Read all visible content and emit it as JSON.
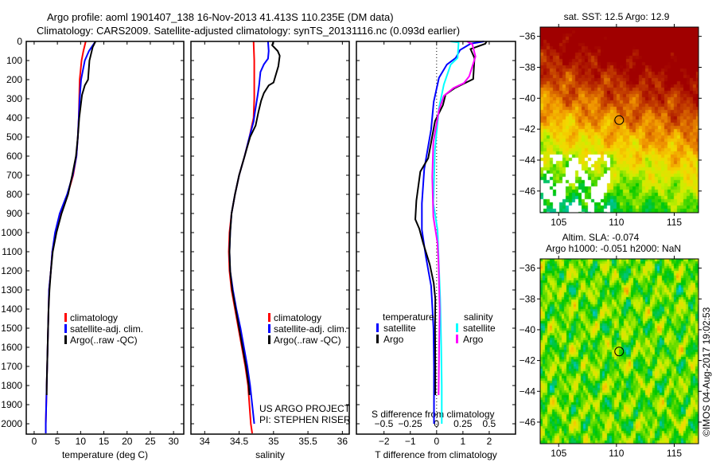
{
  "header": {
    "title_line1": "Argo profile: aoml 1901407_138 16-Nov-2013 41.413S 110.235E (DM data)",
    "title_line2": "Climatology: CARS2009. Satellite-adjusted climatology: synTS_20131116.nc (0.093d earlier)"
  },
  "credits": {
    "line1": "US ARGO PROJECT",
    "line2": "PI: STEPHEN RISER"
  },
  "timestamp": "©IMOS 04-Aug-2017 19:02:53",
  "colors": {
    "climatology": "#ff0000",
    "satellite": "#0000ff",
    "argo": "#000000",
    "sal_satellite": "#00ffff",
    "sal_argo": "#ff00ff"
  },
  "chart_data": [
    {
      "type": "line",
      "xlabel": "temperature (deg C)",
      "ylabel": "",
      "xlim": [
        -1.7,
        32.2
      ],
      "ylim": [
        2054,
        0
      ],
      "xticks": [
        0,
        5,
        10,
        15,
        20,
        25,
        30
      ],
      "yticks": [
        0,
        100,
        200,
        300,
        400,
        500,
        600,
        700,
        800,
        900,
        1000,
        1100,
        1200,
        1300,
        1400,
        1500,
        1600,
        1700,
        1800,
        1900,
        2000
      ],
      "legend": [
        "climatology",
        "satellite-adj. clim.",
        "Argo(..raw -QC)"
      ],
      "series": [
        {
          "name": "climatology",
          "color": "#ff0000",
          "depth": [
            0,
            50,
            100,
            200,
            300,
            400,
            500,
            600,
            700,
            800,
            900,
            1000,
            1100,
            1200,
            1300,
            1400,
            1600,
            1800,
            2000,
            2050
          ],
          "values": [
            11.1,
            10.6,
            10.2,
            9.8,
            9.7,
            9.6,
            9.4,
            9.1,
            8.4,
            7.2,
            5.6,
            4.6,
            3.9,
            3.6,
            3.2,
            3.1,
            2.9,
            2.7,
            2.5,
            2.5
          ]
        },
        {
          "name": "satellite-adj. clim.",
          "color": "#0000ff",
          "depth": [
            0,
            50,
            100,
            200,
            300,
            400,
            500,
            600,
            700,
            800,
            900,
            1000,
            1100,
            1200,
            1300,
            1400,
            1600,
            1800,
            2000,
            2050
          ],
          "values": [
            13.2,
            11.8,
            10.9,
            10.1,
            9.8,
            9.6,
            9.4,
            9.1,
            8.3,
            7.1,
            5.5,
            4.5,
            3.9,
            3.6,
            3.2,
            3.1,
            2.9,
            2.7,
            2.5,
            2.5
          ]
        },
        {
          "name": "Argo(..raw -QC)",
          "color": "#000000",
          "depth": [
            0,
            30,
            100,
            200,
            230,
            280,
            400,
            500,
            600,
            700,
            800,
            900,
            1000,
            1100,
            1200,
            1300,
            1400,
            1600,
            1800,
            1850
          ],
          "values": [
            13.2,
            12.6,
            11.9,
            11.6,
            10.9,
            10.3,
            9.7,
            9.4,
            9.0,
            8.2,
            7.3,
            5.9,
            4.8,
            4.0,
            3.6,
            3.3,
            3.1,
            2.9,
            2.7,
            2.7
          ]
        }
      ]
    },
    {
      "type": "line",
      "xlabel": "salinity",
      "xlim": [
        33.8,
        36.1
      ],
      "ylim": [
        2054,
        0
      ],
      "xticks": [
        34,
        34.5,
        35,
        35.5,
        36
      ],
      "legend": [
        "climatology",
        "satellite-adj. clim.",
        "Argo(..raw -QC)"
      ],
      "series": [
        {
          "name": "climatology",
          "color": "#ff0000",
          "depth": [
            0,
            100,
            200,
            300,
            400,
            500,
            600,
            700,
            800,
            900,
            1000,
            1100,
            1200,
            1300,
            1400,
            1500,
            1600,
            1700,
            1800,
            1900,
            2000,
            2050
          ],
          "values": [
            34.71,
            34.72,
            34.72,
            34.72,
            34.71,
            34.65,
            34.58,
            34.5,
            34.44,
            34.39,
            34.36,
            34.35,
            34.36,
            34.39,
            34.44,
            34.49,
            34.54,
            34.59,
            34.63,
            34.65,
            34.67,
            34.69
          ]
        },
        {
          "name": "satellite-adj. clim.",
          "color": "#0000ff",
          "depth": [
            0,
            50,
            90,
            120,
            160,
            230,
            280,
            370,
            420,
            500,
            600,
            700,
            800,
            900,
            1000,
            1100,
            1200,
            1300,
            1400,
            1500,
            1600,
            1700,
            1800,
            1900,
            2000
          ],
          "values": [
            34.92,
            34.93,
            34.92,
            34.86,
            34.81,
            34.79,
            34.77,
            34.73,
            34.71,
            34.65,
            34.58,
            34.5,
            34.44,
            34.39,
            34.37,
            34.36,
            34.37,
            34.41,
            34.46,
            34.52,
            34.57,
            34.62,
            34.66,
            34.69,
            34.72
          ]
        },
        {
          "name": "Argo(..raw -QC)",
          "color": "#000000",
          "depth": [
            0,
            20,
            50,
            75,
            130,
            215,
            230,
            270,
            310,
            370,
            440,
            500,
            600,
            700,
            800,
            900,
            1000,
            1100,
            1200,
            1300,
            1400,
            1500,
            1600,
            1700,
            1800,
            1850
          ],
          "values": [
            35.0,
            34.98,
            35.06,
            35.09,
            35.07,
            35.0,
            34.93,
            34.86,
            34.82,
            34.78,
            34.74,
            34.66,
            34.58,
            34.5,
            34.44,
            34.39,
            34.37,
            34.36,
            34.37,
            34.4,
            34.45,
            34.5,
            34.55,
            34.6,
            34.64,
            34.65
          ]
        }
      ]
    },
    {
      "type": "line",
      "xlabel": "T difference from climatology",
      "xlabel_secondary": "S difference from climatology",
      "xlim": [
        -3.05,
        3.0
      ],
      "xlim_secondary": [
        -0.76,
        0.75
      ],
      "xticks": [
        -2,
        -1,
        0,
        1,
        2
      ],
      "xticks_secondary": [
        -0.5,
        -0.25,
        0,
        0.25,
        0.5
      ],
      "legend_headers": [
        "temperature",
        "salinity"
      ],
      "legend": [
        "satellite",
        "Argo",
        "satellite",
        "Argo"
      ],
      "series": [
        {
          "name": "temperature satellite",
          "axis": "T",
          "color": "#0000ff",
          "depth": [
            0,
            12,
            45,
            86,
            121,
            190,
            315,
            461,
            667,
            847,
            986,
            1125,
            1278,
            1347,
            1500,
            1700,
            1900,
            2000
          ],
          "values": [
            1.8,
            1.29,
            0.89,
            0.73,
            0.39,
            0.09,
            -0.11,
            -0.21,
            -0.47,
            -0.56,
            -0.56,
            -0.41,
            -0.21,
            -0.18,
            -0.12,
            -0.1,
            -0.1,
            -0.1
          ]
        },
        {
          "name": "temperature Argo",
          "axis": "T",
          "color": "#000000",
          "depth": [
            0,
            12,
            40,
            87,
            197,
            244,
            278,
            333,
            417,
            611,
            681,
            833,
            931,
            979,
            1056,
            1167,
            1264,
            1347,
            1500,
            1700,
            1850
          ],
          "values": [
            1.9,
            1.85,
            1.29,
            1.44,
            1.39,
            0.69,
            0.34,
            0.24,
            -0.06,
            -0.32,
            -0.62,
            -0.77,
            -0.81,
            -0.66,
            -0.51,
            -0.26,
            -0.11,
            -0.05,
            -0.06,
            -0.05,
            -0.05
          ]
        },
        {
          "name": "salinity satellite",
          "axis": "S",
          "color": "#00ffff",
          "depth": [
            0,
            5,
            86,
            121,
            225,
            350,
            569,
            847,
            986,
            1347,
            1600,
            1800,
            2000
          ],
          "values": [
            0.135,
            0.21,
            0.2,
            0.135,
            0.07,
            0.023,
            -0.015,
            -0.03,
            0.01,
            0.035,
            0.045,
            0.05,
            0.05
          ]
        },
        {
          "name": "salinity Argo",
          "axis": "S",
          "color": "#ff00ff",
          "depth": [
            0,
            15,
            79,
            183,
            218,
            244,
            285,
            361,
            528,
            708,
            917,
            1056,
            1167,
            1400,
            1600,
            1850
          ],
          "values": [
            0.29,
            0.34,
            0.37,
            0.31,
            0.26,
            0.16,
            0.07,
            0.023,
            -0.03,
            -0.04,
            -0.03,
            0.01,
            0.02,
            0.03,
            0.025,
            0.02
          ]
        }
      ]
    },
    {
      "type": "heatmap",
      "title": "sat. SST: 12.5 Argo: 12.9",
      "xlim": [
        103.4,
        117.1
      ],
      "ylim": [
        -47.4,
        -35.4
      ],
      "xticks": [
        105,
        110,
        115
      ],
      "yticks": [
        -36,
        -38,
        -40,
        -42,
        -44,
        -46
      ],
      "marker": {
        "lon": 110.235,
        "lat": -41.413
      }
    },
    {
      "type": "heatmap",
      "title": "Altim. SLA: -0.074",
      "subtitle": "Argo h1000: -0.051 h2000: NaN",
      "xlim": [
        103.4,
        117.1
      ],
      "ylim": [
        -47.4,
        -35.4
      ],
      "xticks": [
        105,
        110,
        115
      ],
      "yticks": [
        -36,
        -38,
        -40,
        -42,
        -44,
        -46
      ],
      "marker": {
        "lon": 110.235,
        "lat": -41.413
      }
    }
  ]
}
